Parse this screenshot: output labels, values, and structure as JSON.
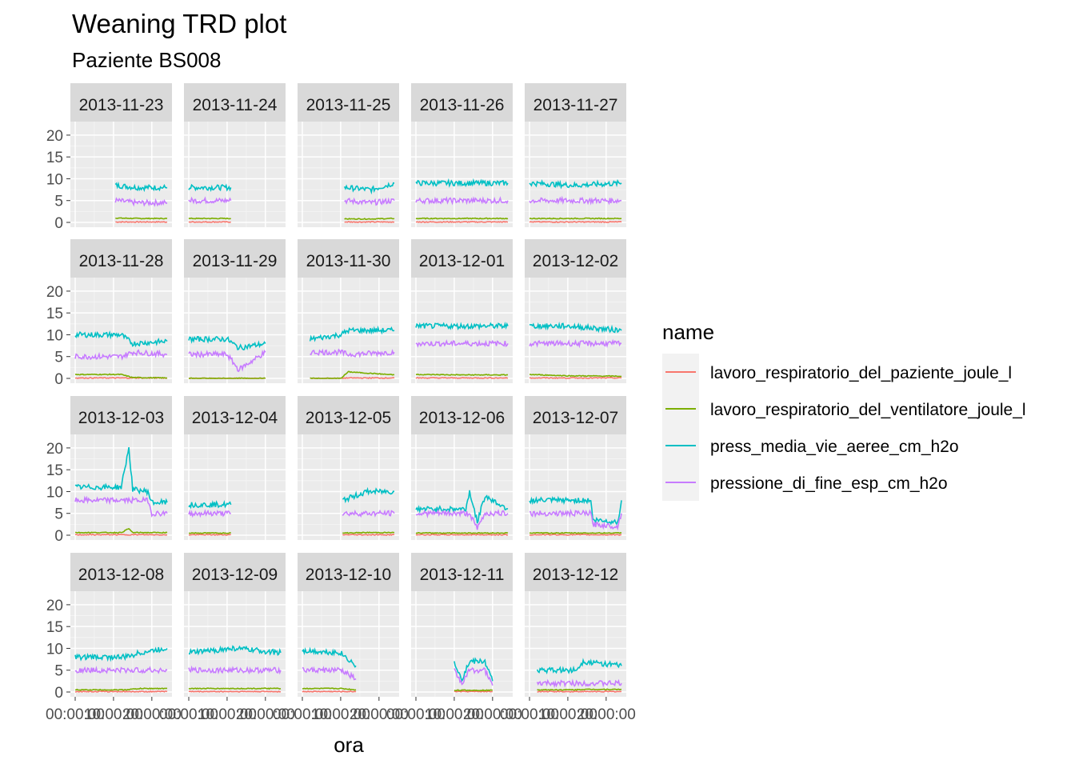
{
  "chart_data": {
    "type": "line",
    "title": "Weaning TRD plot",
    "subtitle": "Paziente BS008",
    "xlabel": "ora",
    "ylabel": "",
    "ylim": [
      0,
      22
    ],
    "y_ticks": [
      "0",
      "5",
      "10",
      "15",
      "20"
    ],
    "x_ticks": [
      "00:00:00",
      "10:00:00",
      "20:00:00"
    ],
    "grid": true,
    "legend": {
      "title": "name",
      "placement": "right",
      "entries": [
        {
          "name": "lavoro_respiratorio_del_paziente_joule_l",
          "color": "#F8766D"
        },
        {
          "name": "lavoro_respiratorio_del_ventilatore_joule_l",
          "color": "#7CAE00"
        },
        {
          "name": "press_media_vie_aeree_cm_h2o",
          "color": "#00BFC4"
        },
        {
          "name": "pressione_di_fine_esp_cm_h2o",
          "color": "#C77CFF"
        }
      ]
    },
    "panels": [
      {
        "date": "2013-11-23",
        "start": 10.5,
        "end": 24,
        "segments": [
          [
            10.5,
            8.5,
            5,
            1,
            0.1
          ],
          [
            16,
            8,
            4.5,
            0.9,
            0.1
          ],
          [
            24,
            8,
            4.5,
            0.9,
            0.1
          ]
        ]
      },
      {
        "date": "2013-11-24",
        "start": 0,
        "end": 11,
        "segments": [
          [
            0,
            8,
            5,
            0.9,
            0.1
          ],
          [
            11,
            8,
            5,
            0.9,
            0.1
          ]
        ]
      },
      {
        "date": "2013-11-25",
        "start": 11,
        "end": 24,
        "segments": [
          [
            11,
            8,
            5,
            0.8,
            0.1
          ],
          [
            18,
            7.5,
            4.5,
            0.8,
            0.1
          ],
          [
            24,
            9,
            5,
            0.9,
            0.1
          ]
        ]
      },
      {
        "date": "2013-11-26",
        "start": 0,
        "end": 24,
        "segments": [
          [
            0,
            9,
            5,
            0.9,
            0.1
          ],
          [
            12,
            9,
            5,
            0.9,
            0.1
          ],
          [
            24,
            9,
            5,
            0.9,
            0.1
          ]
        ]
      },
      {
        "date": "2013-11-27",
        "start": 0,
        "end": 24,
        "segments": [
          [
            0,
            9,
            5,
            0.9,
            0.1
          ],
          [
            12,
            8.5,
            5,
            0.9,
            0.1
          ],
          [
            24,
            9,
            5,
            0.9,
            0.1
          ]
        ]
      },
      {
        "date": "2013-11-28",
        "start": 0,
        "end": 24,
        "segments": [
          [
            0,
            10,
            5,
            0.9,
            0.1
          ],
          [
            12,
            10,
            5,
            0.9,
            0.1
          ],
          [
            15,
            8,
            6,
            0.2,
            0.1
          ],
          [
            24,
            8.5,
            5.5,
            0.1,
            0.1
          ]
        ]
      },
      {
        "date": "2013-11-29",
        "start": 0,
        "end": 20,
        "segments": [
          [
            0,
            9,
            5.5,
            0,
            0
          ],
          [
            10,
            9,
            5.5,
            0,
            0
          ],
          [
            13,
            7,
            2,
            0,
            0
          ],
          [
            20,
            8,
            6,
            0,
            0
          ]
        ]
      },
      {
        "date": "2013-11-30",
        "start": 2,
        "end": 24,
        "segments": [
          [
            2,
            9,
            6,
            0,
            0
          ],
          [
            10,
            10,
            6,
            0,
            0
          ],
          [
            12,
            11,
            5.5,
            1.5,
            0.1
          ],
          [
            24,
            11,
            6,
            0.8,
            0.1
          ]
        ]
      },
      {
        "date": "2013-12-01",
        "start": 0,
        "end": 24,
        "segments": [
          [
            0,
            12,
            8,
            0.9,
            0.1
          ],
          [
            12,
            12,
            8,
            0.8,
            0.1
          ],
          [
            24,
            12,
            8,
            0.8,
            0.1
          ]
        ]
      },
      {
        "date": "2013-12-02",
        "start": 0,
        "end": 24,
        "segments": [
          [
            0,
            12,
            8,
            0.9,
            0.1
          ],
          [
            10,
            12,
            8,
            0.6,
            0.1
          ],
          [
            24,
            11,
            8,
            0.5,
            0.1
          ]
        ]
      },
      {
        "date": "2013-12-03",
        "start": 0,
        "end": 24,
        "segments": [
          [
            0,
            11,
            8,
            0.6,
            0.1
          ],
          [
            12,
            11,
            8,
            0.6,
            0.1
          ],
          [
            14,
            20,
            8,
            1.5,
            0.1
          ],
          [
            15,
            10.5,
            8,
            0.6,
            0.1
          ],
          [
            19,
            10,
            8,
            0.6,
            0.1
          ],
          [
            20,
            7.5,
            5,
            0.6,
            0.1
          ],
          [
            24,
            7.5,
            5,
            0.6,
            0.1
          ]
        ]
      },
      {
        "date": "2013-12-04",
        "start": 0,
        "end": 11,
        "segments": [
          [
            0,
            7,
            5,
            0.5,
            0.1
          ],
          [
            11,
            7,
            5,
            0.5,
            0.1
          ]
        ]
      },
      {
        "date": "2013-12-05",
        "start": 10.5,
        "end": 24,
        "segments": [
          [
            10.5,
            8,
            5,
            0.5,
            0.1
          ],
          [
            17,
            10,
            5,
            0.6,
            0.1
          ],
          [
            24,
            10,
            5,
            0.6,
            0.1
          ]
        ]
      },
      {
        "date": "2013-12-06",
        "start": 0,
        "end": 24,
        "segments": [
          [
            0,
            6,
            5,
            0.5,
            0.1
          ],
          [
            13,
            6,
            5,
            0.5,
            0.1
          ],
          [
            14,
            10,
            5,
            0.5,
            0.1
          ],
          [
            16,
            3,
            1.5,
            0.5,
            0.1
          ],
          [
            18,
            9,
            5,
            0.5,
            0.1
          ],
          [
            24,
            6,
            5,
            0.5,
            0.1
          ]
        ]
      },
      {
        "date": "2013-12-07",
        "start": 0,
        "end": 24,
        "segments": [
          [
            0,
            8,
            5,
            0.5,
            0.1
          ],
          [
            16,
            8,
            5,
            0.5,
            0.1
          ],
          [
            16.5,
            3.5,
            2.5,
            0.5,
            0.1
          ],
          [
            23,
            3,
            2,
            0.5,
            0.1
          ],
          [
            24,
            8,
            5,
            0.5,
            0.1
          ]
        ]
      },
      {
        "date": "2013-12-08",
        "start": 0,
        "end": 24,
        "segments": [
          [
            0,
            8,
            5,
            0.5,
            0.1
          ],
          [
            13,
            8,
            5,
            0.5,
            0.1
          ],
          [
            17,
            9,
            5,
            0.8,
            0.1
          ],
          [
            24,
            10,
            5,
            0.8,
            0.1
          ]
        ]
      },
      {
        "date": "2013-12-09",
        "start": 0,
        "end": 24,
        "segments": [
          [
            0,
            9,
            5,
            0.8,
            0.1
          ],
          [
            12,
            10,
            5,
            0.8,
            0.1
          ],
          [
            24,
            9,
            5,
            0.8,
            0.1
          ]
        ]
      },
      {
        "date": "2013-12-10",
        "start": 0,
        "end": 14,
        "segments": [
          [
            0,
            9.5,
            5,
            0.8,
            0.1
          ],
          [
            10,
            9,
            5,
            0.8,
            0.1
          ],
          [
            14,
            6,
            3,
            0.5,
            0.1
          ]
        ]
      },
      {
        "date": "2013-12-11",
        "start": 10,
        "end": 20,
        "segments": [
          [
            10,
            7,
            5,
            0.4,
            0.1
          ],
          [
            12,
            3,
            2,
            0.4,
            0.1
          ],
          [
            14,
            7,
            5,
            0.4,
            0.1
          ],
          [
            18,
            7,
            5,
            0.4,
            0.1
          ],
          [
            20,
            2.5,
            1.5,
            0.4,
            0.1
          ]
        ]
      },
      {
        "date": "2013-12-12",
        "start": 2,
        "end": 24,
        "segments": [
          [
            2,
            5,
            2,
            0.5,
            0.1
          ],
          [
            12,
            5,
            2,
            0.5,
            0.1
          ],
          [
            14,
            7,
            2,
            0.6,
            0.1
          ],
          [
            24,
            6,
            2,
            0.6,
            0.1
          ]
        ]
      }
    ]
  }
}
